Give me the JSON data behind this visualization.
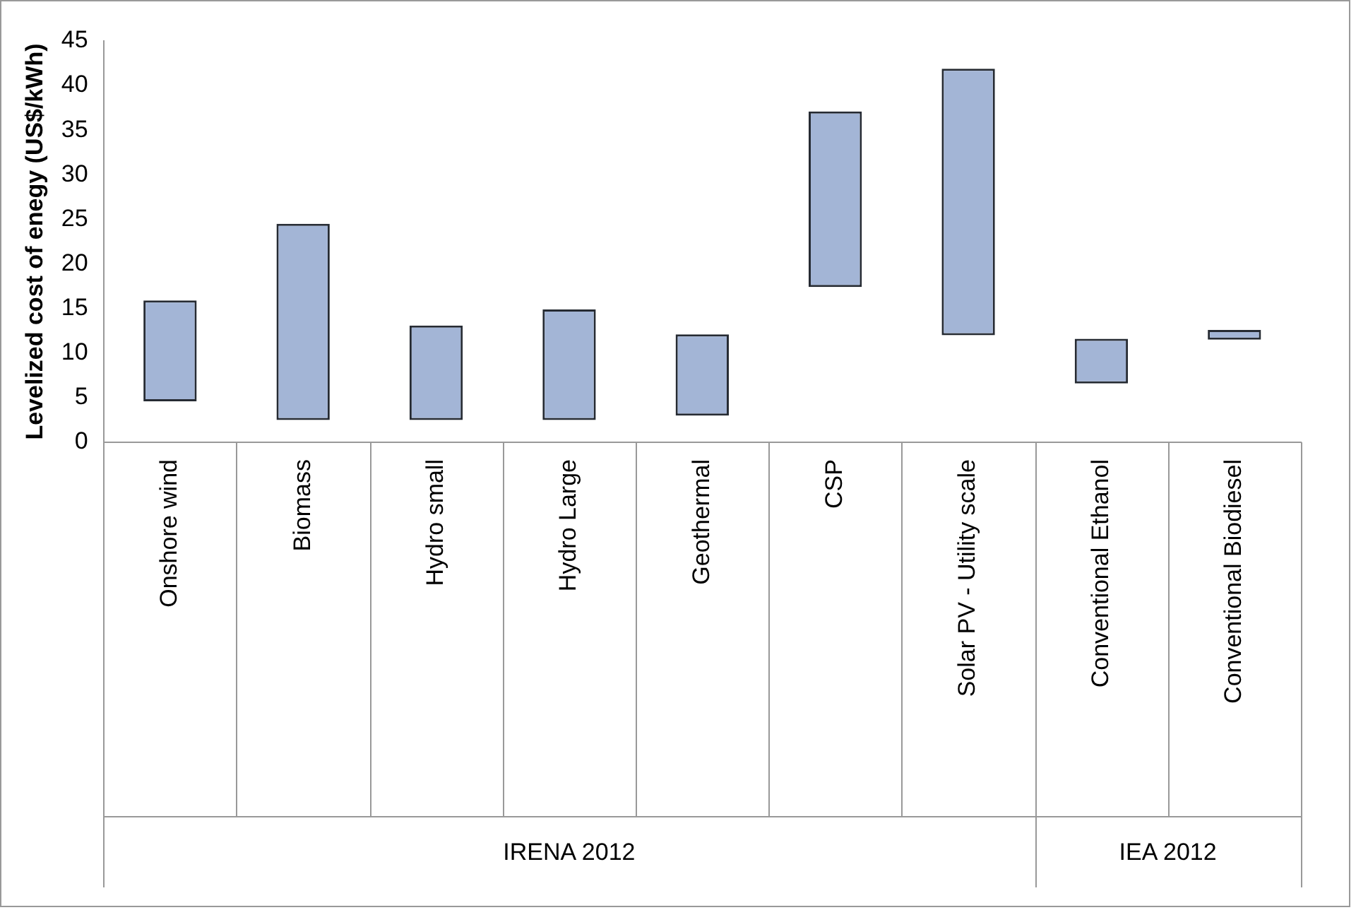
{
  "chart_data": {
    "type": "bar",
    "ylabel": "Levelized cost of enegy (US$/kWh)",
    "categories": [
      "Onshore wind",
      "Biomass",
      "Hydro small",
      "Hydro Large",
      "Geothermal",
      "CSP",
      "Solar PV - Utility scale",
      "Conventional Ethanol",
      "Conventional Biodiesel"
    ],
    "base": [
      4.6,
      2.5,
      2.5,
      2.5,
      3.0,
      17.4,
      12.0,
      6.6,
      11.5
    ],
    "values": [
      11.3,
      22.0,
      10.6,
      12.4,
      9.1,
      19.7,
      29.9,
      5.0,
      1.1
    ],
    "color": "#a3b5d6",
    "ylim": [
      0,
      45
    ],
    "yticks": [
      0,
      5,
      10,
      15,
      20,
      25,
      30,
      35,
      40,
      45
    ],
    "grid": false,
    "legend": false,
    "annotations": [
      "IRENA 2012",
      "IEA 2012"
    ]
  }
}
